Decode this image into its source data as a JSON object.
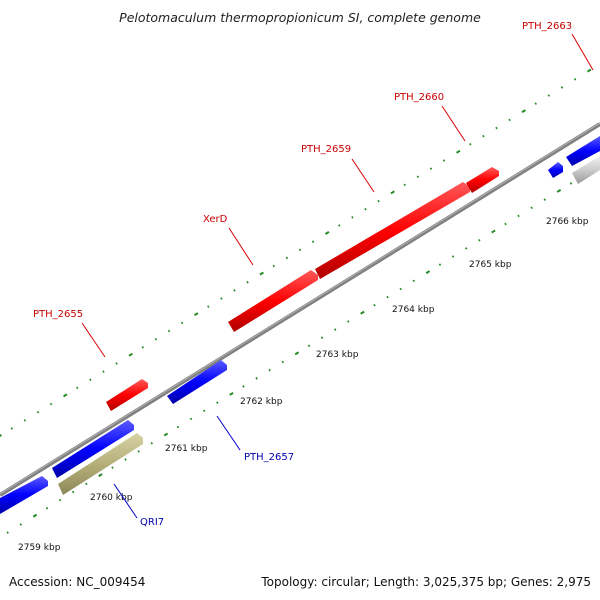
{
  "title": "Pelotomaculum thermopropionicum SI, complete genome",
  "footer": {
    "accession": "Accession: NC_009454",
    "summary": "Topology: circular; Length: 3,025,375 bp; Genes: 2,975"
  },
  "colors": {
    "forward_gene": "#ff0000",
    "reverse_gene": "#0000ff",
    "other_feature": "#b5b07a",
    "backbone": "#808080",
    "ticks": "#228b22",
    "forward_label": "#cc0000",
    "reverse_label": "#0000aa"
  },
  "scale_labels": [
    "2759 kbp",
    "2760 kbp",
    "2761 kbp",
    "2762 kbp",
    "2763 kbp",
    "2764 kbp",
    "2765 kbp",
    "2766 kbp"
  ],
  "gene_labels": [
    {
      "text": "PTH_2663",
      "strand": "forward"
    },
    {
      "text": "PTH_2660",
      "strand": "forward"
    },
    {
      "text": "PTH_2659",
      "strand": "forward"
    },
    {
      "text": "XerD",
      "strand": "forward"
    },
    {
      "text": "PTH_2655",
      "strand": "forward"
    },
    {
      "text": "PTH_2657",
      "strand": "reverse"
    },
    {
      "text": "QRI7",
      "strand": "reverse"
    }
  ]
}
